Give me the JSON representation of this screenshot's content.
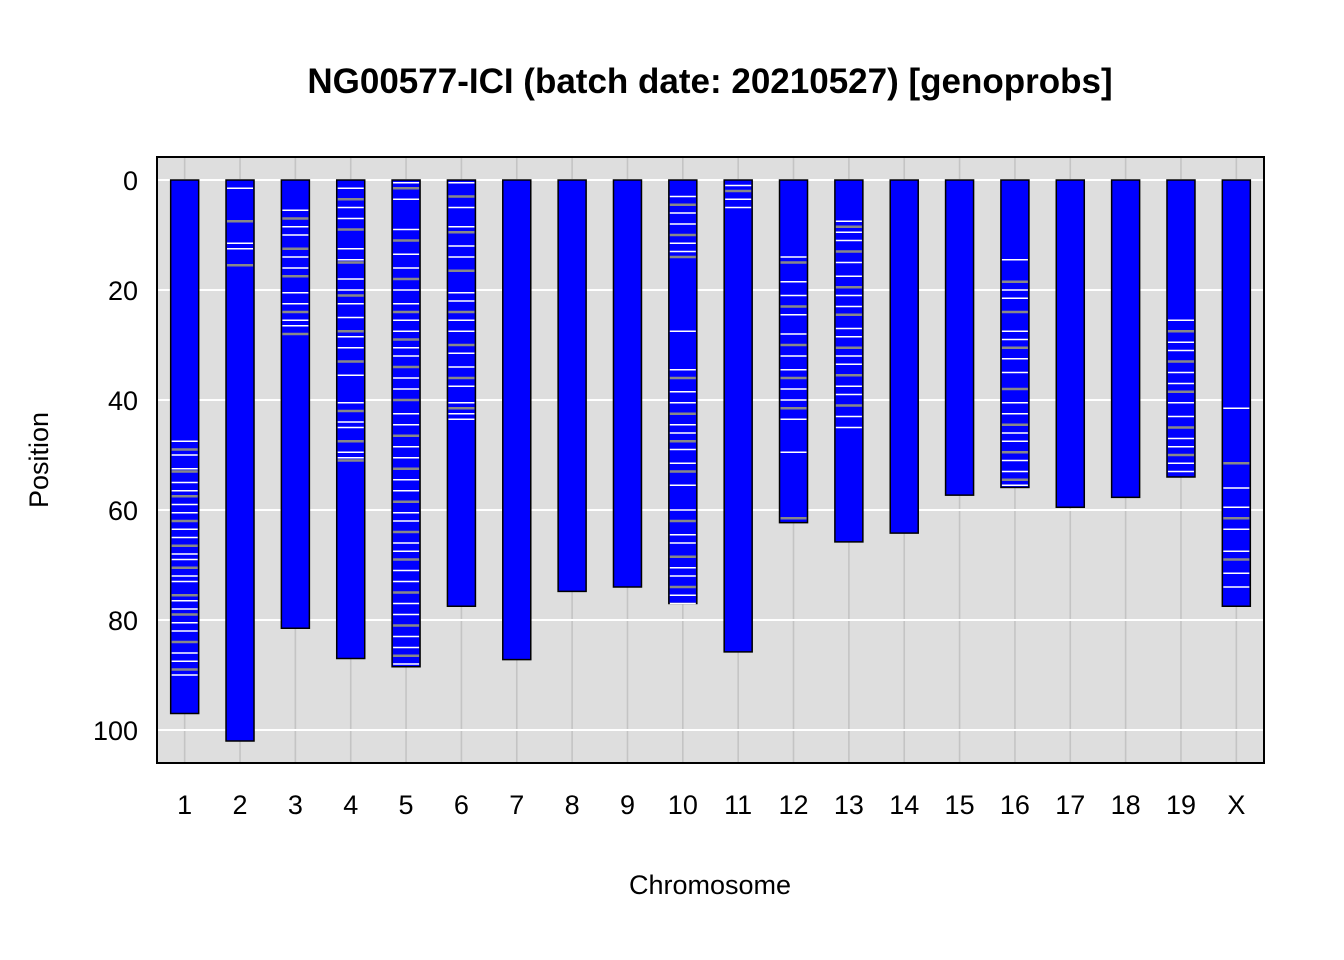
{
  "chart_data": {
    "type": "bar",
    "title": "NG00577-ICI (batch date: 20210527) [genoprobs]",
    "xlabel": "Chromosome",
    "ylabel": "Position",
    "categories": [
      "1",
      "2",
      "3",
      "4",
      "5",
      "6",
      "7",
      "8",
      "9",
      "10",
      "11",
      "12",
      "13",
      "14",
      "15",
      "16",
      "17",
      "18",
      "19",
      "X"
    ],
    "values": [
      97,
      102,
      81.5,
      87,
      88.5,
      77.5,
      87.2,
      74.8,
      74,
      77,
      85.8,
      62.3,
      65.8,
      64.2,
      57.3,
      55.9,
      59.5,
      57.7,
      54,
      77.5
    ],
    "ylim": [
      0,
      105
    ],
    "y_reversed": true,
    "yticks": [
      0,
      20,
      40,
      60,
      80,
      100
    ],
    "grid": true,
    "bar_color": "#0000ff",
    "panel_color": "#dedede",
    "grid_color": "#ffffff",
    "crossover_color_white": "#ffffff",
    "crossover_color_gray": "#888888",
    "crossovers": {
      "1": [
        47.5,
        49,
        50,
        52.5,
        53,
        55,
        56.5,
        57.5,
        59,
        60.5,
        62,
        63.5,
        65,
        66.5,
        68,
        69,
        70.5,
        72,
        73,
        75.5,
        76.5,
        78,
        79,
        80.5,
        82,
        84,
        86,
        87.5,
        89,
        90
      ],
      "2": [
        1.5,
        7.5,
        11.5,
        12.5,
        15.5
      ],
      "3": [
        5.5,
        7,
        8.5,
        10,
        12.5,
        14,
        16,
        17.5,
        20.5,
        22.5,
        24,
        25.5,
        26.5,
        28
      ],
      "4": [
        1.5,
        3.5,
        5,
        7,
        9,
        12.5,
        14.5,
        15,
        18,
        20,
        21,
        22.5,
        25,
        27.5,
        28.5,
        30.5,
        33,
        35.5,
        40.5,
        42,
        44,
        45,
        47.5,
        49.5,
        50.5,
        51
      ],
      "5": [
        0.5,
        1.5,
        3.5,
        9,
        11,
        13.5,
        16,
        18,
        20,
        22.5,
        24,
        25.5,
        27.5,
        29,
        30.5,
        32,
        34,
        36,
        38,
        40,
        42.5,
        44.5,
        46.5,
        48.5,
        50.5,
        52.5,
        54.5,
        56.5,
        58.5,
        60.5,
        62,
        64,
        66,
        67.5,
        69,
        71,
        73,
        75,
        77,
        79,
        81,
        83,
        85,
        86.5,
        88
      ],
      "6": [
        0.5,
        3,
        5,
        8.5,
        9.5,
        12,
        14,
        16.5,
        20.5,
        22,
        24,
        25.5,
        27.5,
        30,
        31.5,
        34,
        36,
        37.5,
        40.5,
        41.5,
        42.5,
        43.5
      ],
      "10": [
        3,
        4.5,
        6,
        8,
        10,
        11.5,
        13,
        14,
        27.5,
        34.5,
        36,
        38.5,
        40.5,
        42.5,
        44.5,
        46,
        47.5,
        49,
        51.5,
        53,
        55.5,
        60,
        62,
        64.5,
        66,
        68.5,
        70.5,
        72,
        74,
        75.5,
        77
      ],
      "11": [
        1,
        2,
        3.5,
        5
      ],
      "12": [
        14,
        15,
        18.5,
        21,
        23,
        24.5,
        28,
        30,
        32,
        34.5,
        36,
        38,
        40,
        41.5,
        43.5,
        49.5,
        61.5
      ],
      "13": [
        7.5,
        8.5,
        9.5,
        11,
        13,
        15,
        17.5,
        19.5,
        21,
        23,
        24.5,
        27,
        28.5,
        30.5,
        32,
        33.5,
        35.5,
        37.5,
        39,
        41,
        43,
        45
      ],
      "16": [
        14.5,
        18.5,
        20,
        21.5,
        24,
        27.5,
        29,
        30.5,
        32.5,
        35,
        38,
        40.5,
        42.5,
        44.5,
        46,
        47.5,
        49.5,
        51,
        53,
        54.5,
        55.5
      ],
      "19": [
        25.5,
        27.5,
        29.5,
        31,
        33,
        35,
        37,
        38.5,
        40.5,
        43,
        45,
        47,
        48.5,
        50,
        51.5,
        53
      ],
      "X": [
        41.5,
        51.5,
        56,
        59.5,
        61.5,
        63.5,
        67.5,
        69,
        71.5,
        74
      ]
    }
  }
}
